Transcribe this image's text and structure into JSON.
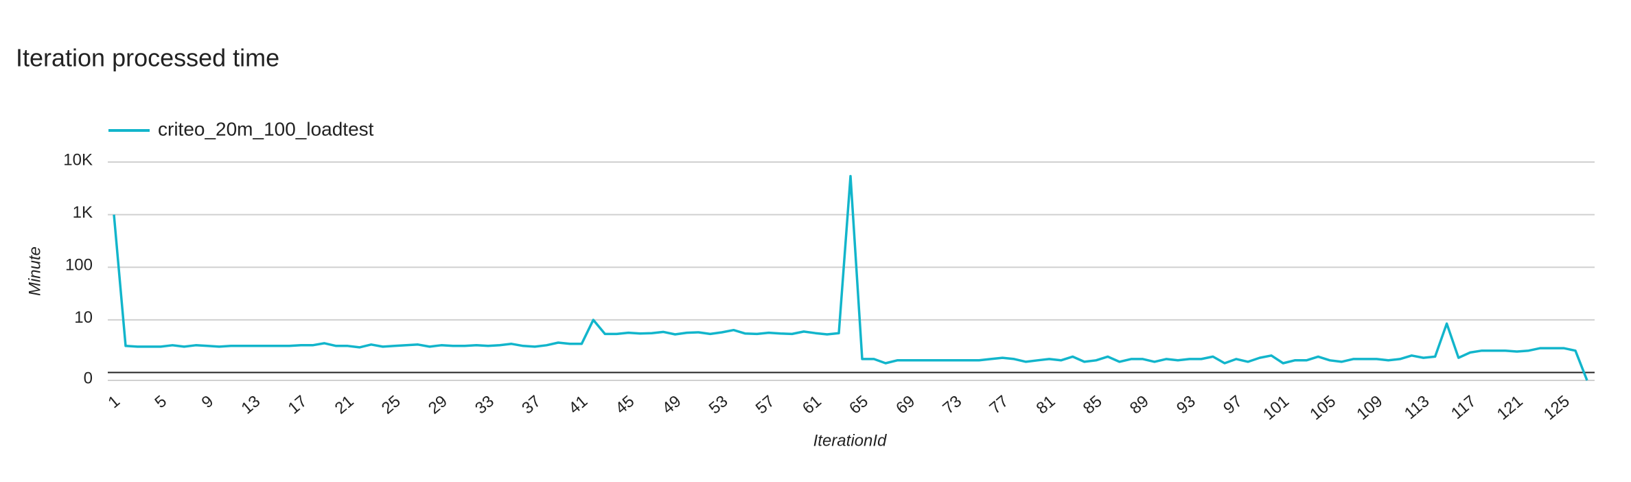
{
  "chart_data": {
    "type": "line",
    "title": "Iteration processed time",
    "x_label": "IterationId",
    "y_label": "Minute",
    "log_scale": true,
    "grid": true,
    "legend": "top-left",
    "x": [
      1,
      2,
      3,
      4,
      5,
      6,
      7,
      8,
      9,
      10,
      11,
      12,
      13,
      14,
      15,
      16,
      17,
      18,
      19,
      20,
      21,
      22,
      23,
      24,
      25,
      26,
      27,
      28,
      29,
      30,
      31,
      32,
      33,
      34,
      35,
      36,
      37,
      38,
      39,
      40,
      41,
      42,
      43,
      44,
      45,
      46,
      47,
      48,
      49,
      50,
      51,
      52,
      53,
      54,
      55,
      56,
      57,
      58,
      59,
      60,
      61,
      62,
      63,
      64,
      65,
      66,
      67,
      68,
      69,
      70,
      71,
      72,
      73,
      74,
      75,
      76,
      77,
      78,
      79,
      80,
      81,
      82,
      83,
      84,
      85,
      86,
      87,
      88,
      89,
      90,
      91,
      92,
      93,
      94,
      95,
      96,
      97,
      98,
      99,
      100,
      101,
      102,
      103,
      104,
      105,
      106,
      107,
      108,
      109,
      110,
      111,
      112,
      113,
      114,
      115,
      116,
      117,
      118,
      119,
      120,
      121,
      122,
      123,
      124,
      125,
      126,
      127
    ],
    "xlim": [
      1,
      127
    ],
    "xticks": [
      1,
      5,
      9,
      13,
      17,
      21,
      25,
      29,
      33,
      37,
      41,
      45,
      49,
      53,
      57,
      61,
      65,
      69,
      73,
      77,
      81,
      85,
      89,
      93,
      97,
      101,
      105,
      109,
      113,
      117,
      121,
      125
    ],
    "ylim": [
      0,
      10000
    ],
    "yticks": [
      0,
      10,
      100,
      {
        "value": 1000,
        "label": "1K"
      },
      {
        "value": 10000,
        "label": "10K"
      }
    ],
    "series": [
      {
        "name": "criteo_20m_100_loadtest",
        "color": "#12b5cb",
        "values": [
          1000,
          3.2,
          3.1,
          3.1,
          3.1,
          3.3,
          3.1,
          3.3,
          3.2,
          3.1,
          3.2,
          3.2,
          3.2,
          3.2,
          3.2,
          3.2,
          3.3,
          3.3,
          3.6,
          3.2,
          3.2,
          3.0,
          3.4,
          3.1,
          3.2,
          3.3,
          3.4,
          3.1,
          3.3,
          3.2,
          3.2,
          3.3,
          3.2,
          3.3,
          3.5,
          3.2,
          3.1,
          3.3,
          3.7,
          3.5,
          3.5,
          10,
          5.4,
          5.4,
          5.7,
          5.5,
          5.6,
          5.9,
          5.3,
          5.7,
          5.8,
          5.4,
          5.8,
          6.4,
          5.5,
          5.4,
          5.7,
          5.5,
          5.4,
          6.0,
          5.6,
          5.3,
          5.6,
          5400,
          1.8,
          1.8,
          1.5,
          1.7,
          1.7,
          1.7,
          1.7,
          1.7,
          1.7,
          1.7,
          1.7,
          1.8,
          1.9,
          1.8,
          1.6,
          1.7,
          1.8,
          1.7,
          2.0,
          1.6,
          1.7,
          2.0,
          1.6,
          1.8,
          1.8,
          1.6,
          1.8,
          1.7,
          1.8,
          1.8,
          2.0,
          1.5,
          1.8,
          1.6,
          1.9,
          2.1,
          1.5,
          1.7,
          1.7,
          2.0,
          1.7,
          1.6,
          1.8,
          1.8,
          1.8,
          1.7,
          1.8,
          2.1,
          1.9,
          2.0,
          8.5,
          1.9,
          2.4,
          2.6,
          2.6,
          2.6,
          2.5,
          2.6,
          2.9,
          2.9,
          2.9,
          2.6,
          0
        ]
      }
    ]
  }
}
